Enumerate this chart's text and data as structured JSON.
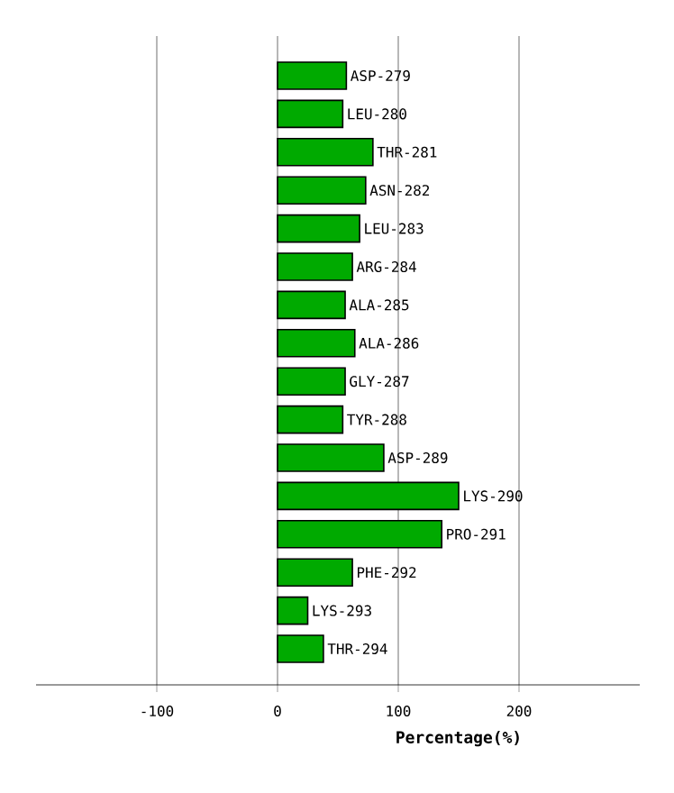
{
  "chart_data": {
    "type": "bar",
    "orientation": "horizontal",
    "xlabel": "Percentage(%)",
    "categories": [
      "ASP-279",
      "LEU-280",
      "THR-281",
      "ASN-282",
      "LEU-283",
      "ARG-284",
      "ALA-285",
      "ALA-286",
      "GLY-287",
      "TYR-288",
      "ASP-289",
      "LYS-290",
      "PRO-291",
      "PHE-292",
      "LYS-293",
      "THR-294"
    ],
    "values": [
      57,
      54,
      79,
      73,
      68,
      62,
      56,
      64,
      56,
      54,
      88,
      150,
      136,
      62,
      25,
      38
    ],
    "color": "#00aa00",
    "xlim": [
      -200,
      300
    ],
    "xticks": [
      -100,
      0,
      100,
      200
    ],
    "grid": "x",
    "tick_labels": "x"
  }
}
